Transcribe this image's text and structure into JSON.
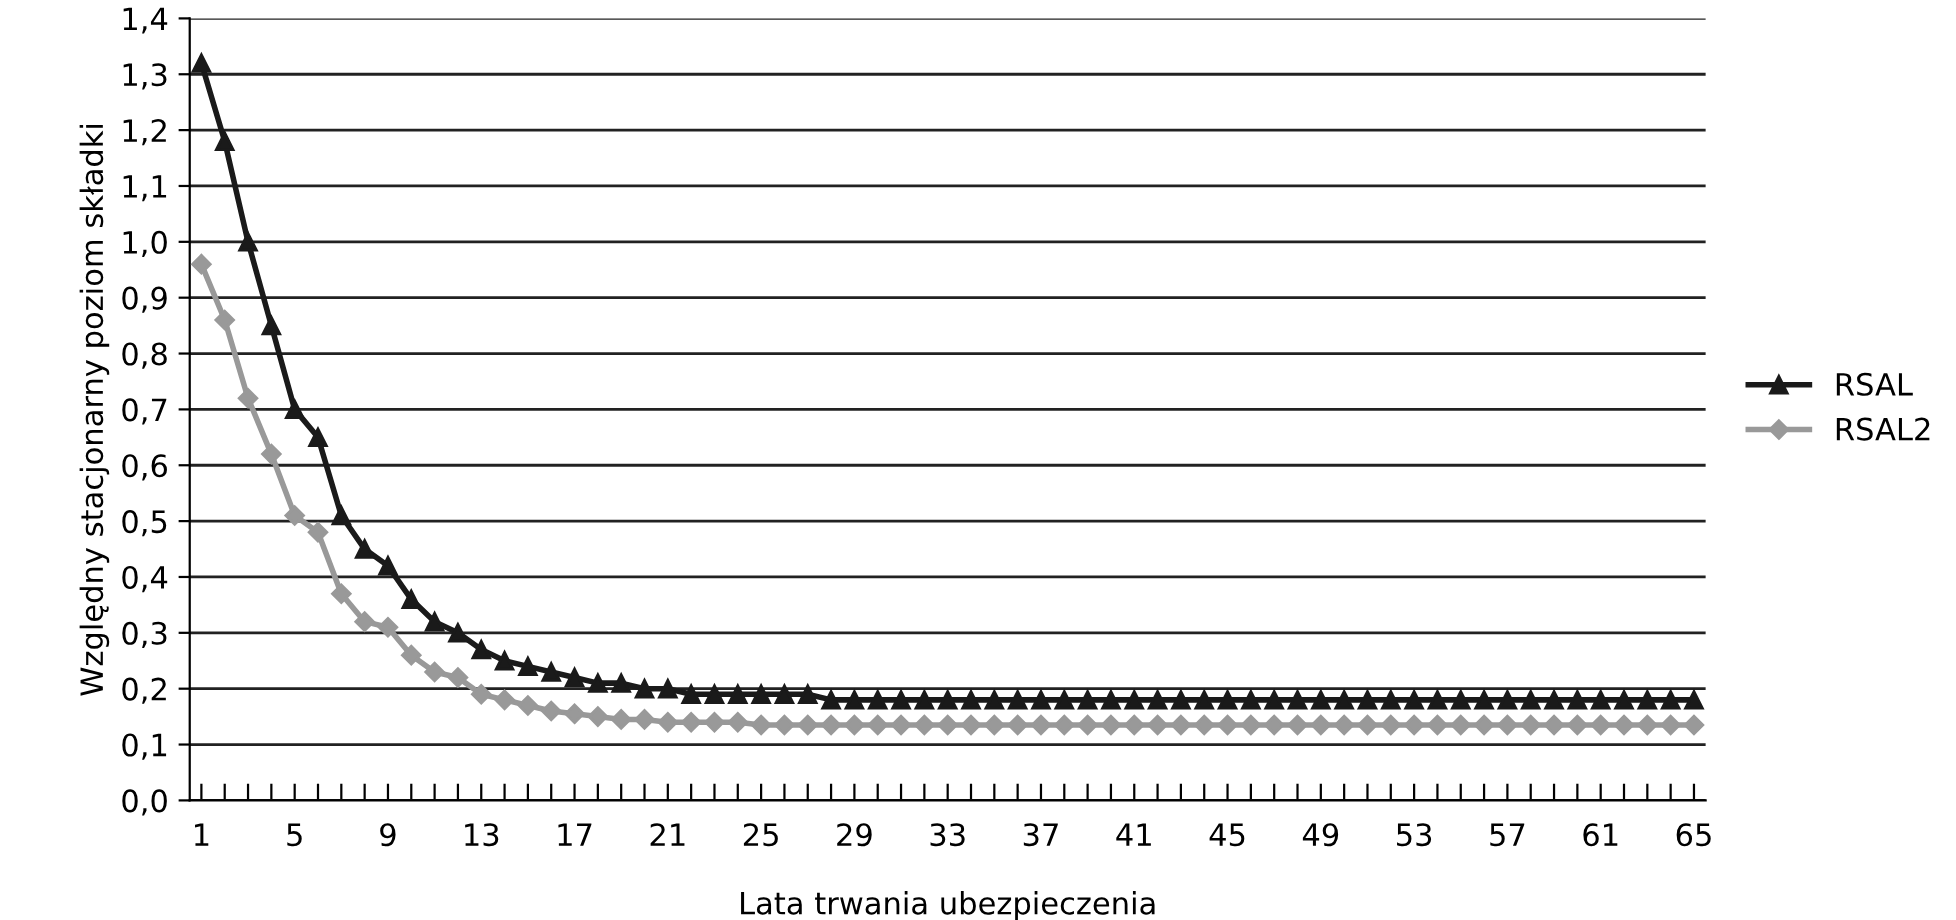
{
  "chart_data": {
    "type": "line",
    "xlabel": "Lata trwania ubezpieczenia",
    "ylabel": "Względny stacjonarny poziom składki",
    "categories": [
      "1",
      null,
      null,
      null,
      "5",
      null,
      null,
      null,
      "9",
      null,
      null,
      null,
      "13",
      null,
      null,
      null,
      "17",
      null,
      null,
      null,
      "21",
      null,
      null,
      null,
      "25",
      null,
      null,
      null,
      "29",
      null,
      null,
      null,
      "33",
      null,
      null,
      null,
      "37",
      null,
      null,
      null,
      "41",
      null,
      null,
      null,
      "45",
      null,
      null,
      null,
      "49",
      null,
      null,
      null,
      "53",
      null,
      null,
      null,
      "57",
      null,
      null,
      null,
      "61",
      null,
      null,
      null,
      "65"
    ],
    "series": [
      {
        "name": "RSAL",
        "color": "#1a1a1a",
        "marker": "triangle",
        "values": [
          1.32,
          1.18,
          1.0,
          0.85,
          0.7,
          0.65,
          0.51,
          0.45,
          0.42,
          0.36,
          0.32,
          0.3,
          0.27,
          0.25,
          0.24,
          0.23,
          0.22,
          0.21,
          0.21,
          0.2,
          0.2,
          0.19,
          0.19,
          0.19,
          0.19,
          0.19,
          0.19,
          0.18,
          0.18,
          0.18,
          0.18,
          0.18,
          0.18,
          0.18,
          0.18,
          0.18,
          0.18,
          0.18,
          0.18,
          0.18,
          0.18,
          0.18,
          0.18,
          0.18,
          0.18,
          0.18,
          0.18,
          0.18,
          0.18,
          0.18,
          0.18,
          0.18,
          0.18,
          0.18,
          0.18,
          0.18,
          0.18,
          0.18,
          0.18,
          0.18,
          0.18,
          0.18,
          0.18,
          0.18,
          0.18
        ]
      },
      {
        "name": "RSAL2",
        "color": "#999999",
        "marker": "diamond",
        "values": [
          0.96,
          0.86,
          0.72,
          0.62,
          0.51,
          0.48,
          0.37,
          0.32,
          0.31,
          0.26,
          0.23,
          0.22,
          0.19,
          0.18,
          0.17,
          0.16,
          0.155,
          0.15,
          0.145,
          0.145,
          0.14,
          0.14,
          0.14,
          0.14,
          0.135,
          0.135,
          0.135,
          0.135,
          0.135,
          0.135,
          0.135,
          0.135,
          0.135,
          0.135,
          0.135,
          0.135,
          0.135,
          0.135,
          0.135,
          0.135,
          0.135,
          0.135,
          0.135,
          0.135,
          0.135,
          0.135,
          0.135,
          0.135,
          0.135,
          0.135,
          0.135,
          0.135,
          0.135,
          0.135,
          0.135,
          0.135,
          0.135,
          0.135,
          0.135,
          0.135,
          0.135,
          0.135,
          0.135,
          0.135,
          0.135
        ]
      }
    ],
    "ylim": [
      0,
      1.4
    ],
    "yticks": [
      {
        "value": 0,
        "label": "0,0"
      },
      {
        "value": 0.1,
        "label": "0,1"
      },
      {
        "value": 0.2,
        "label": "0,2"
      },
      {
        "value": 0.3,
        "label": "0,3"
      },
      {
        "value": 0.4,
        "label": "0,4"
      },
      {
        "value": 0.5,
        "label": "0,5"
      },
      {
        "value": 0.6,
        "label": "0,6"
      },
      {
        "value": 0.7,
        "label": "0,7"
      },
      {
        "value": 0.8,
        "label": "0,8"
      },
      {
        "value": 0.9,
        "label": "0,9"
      },
      {
        "value": 1.0,
        "label": "1,0"
      },
      {
        "value": 1.1,
        "label": "1,1"
      },
      {
        "value": 1.2,
        "label": "1,2"
      },
      {
        "value": 1.3,
        "label": "1,3"
      },
      {
        "value": 1.4,
        "label": "1,4"
      }
    ],
    "grid": "y",
    "legend": "right",
    "line_style": "solid"
  }
}
